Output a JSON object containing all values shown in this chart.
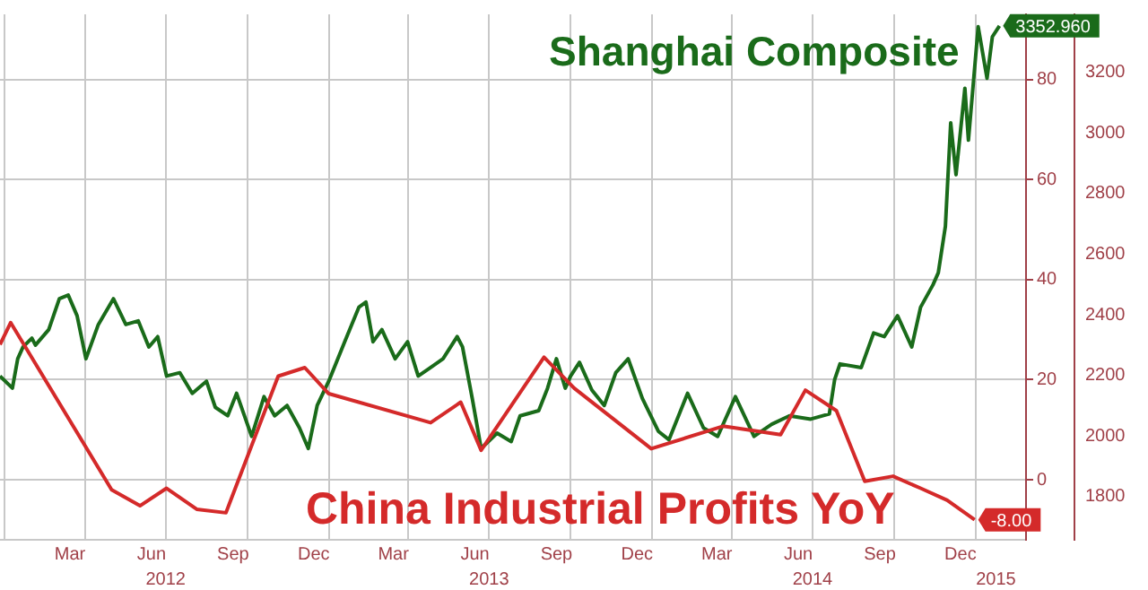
{
  "chart_data": {
    "type": "line",
    "xlim": [
      "2011-12-27",
      "2015-02-27"
    ],
    "xticks": [
      {
        "value": "2012-01-01",
        "label": null
      },
      {
        "value": "2012-03-15",
        "label": "Mar"
      },
      {
        "value": "2012-04-01",
        "label": null
      },
      {
        "value": "2012-06-15",
        "label": "Jun"
      },
      {
        "value": "2012-07-01",
        "label": null
      },
      {
        "value": "2012-09-15",
        "label": "Sep"
      },
      {
        "value": "2012-10-01",
        "label": null
      },
      {
        "value": "2012-12-15",
        "label": "Dec"
      },
      {
        "value": "2013-01-01",
        "label": null
      },
      {
        "value": "2013-03-15",
        "label": "Mar"
      },
      {
        "value": "2013-04-01",
        "label": null
      },
      {
        "value": "2013-06-15",
        "label": "Jun"
      },
      {
        "value": "2013-07-01",
        "label": null
      },
      {
        "value": "2013-09-15",
        "label": "Sep"
      },
      {
        "value": "2013-10-01",
        "label": null
      },
      {
        "value": "2013-12-15",
        "label": "Dec"
      },
      {
        "value": "2014-01-01",
        "label": null
      },
      {
        "value": "2014-03-15",
        "label": "Mar"
      },
      {
        "value": "2014-04-01",
        "label": null
      },
      {
        "value": "2014-06-15",
        "label": "Jun"
      },
      {
        "value": "2014-07-01",
        "label": null
      },
      {
        "value": "2014-09-15",
        "label": "Sep"
      },
      {
        "value": "2014-10-01",
        "label": null
      },
      {
        "value": "2014-12-15",
        "label": "Dec"
      },
      {
        "value": "2015-01-01",
        "label": null
      }
    ],
    "x2lim": [
      "2011-12-27",
      "2015-02-27"
    ],
    "x2ticks": [
      {
        "value": "2012-07-01",
        "label": "2012"
      },
      {
        "value": "2013-07-01",
        "label": "2013"
      },
      {
        "value": "2014-07-01",
        "label": "2014"
      },
      {
        "value": "2015-01-24",
        "label": "2015"
      }
    ],
    "ylim": [
      -12,
      93
    ],
    "yticks": [
      0,
      20,
      40,
      60,
      80
    ],
    "y2lim": [
      1658,
      3391
    ],
    "y2ticks": [
      1800,
      2000,
      2200,
      2400,
      2600,
      2800,
      3000,
      3200
    ],
    "grid": true,
    "legend": "right",
    "marker": "none",
    "line_style": "solid",
    "series": [
      {
        "name": "China Industrial Profits YoY",
        "color": "#d42a2a",
        "axis": "y",
        "x": [
          "2011-12-27",
          "2012-01-08",
          "2012-05-01",
          "2012-06-02",
          "2012-07-02",
          "2012-08-05",
          "2012-09-07",
          "2012-11-05",
          "2012-12-05",
          "2013-01-01",
          "2013-04-26",
          "2013-05-30",
          "2013-06-22",
          "2013-09-01",
          "2013-10-05",
          "2013-12-31",
          "2014-03-22",
          "2014-05-26",
          "2014-06-23",
          "2014-07-28",
          "2014-08-29",
          "2014-09-30",
          "2014-10-31",
          "2014-11-30",
          "2014-12-31"
        ],
        "values": [
          27,
          31.4,
          -2,
          -5.2,
          -1.7,
          -5.9,
          -6.6,
          20.7,
          22.4,
          17.2,
          11.4,
          15.5,
          5.9,
          24.5,
          18.3,
          6.2,
          10.7,
          9,
          17.9,
          13.8,
          -0.3,
          0.7,
          -1.7,
          -4.1,
          -8
        ],
        "value_labels": [
          null,
          null,
          null,
          null,
          null,
          null,
          null,
          null,
          null,
          null,
          null,
          null,
          null,
          null,
          null,
          null,
          null,
          null,
          null,
          null,
          null,
          null,
          null,
          null,
          "-8.00"
        ]
      },
      {
        "name": "Shanghai Composite",
        "color": "#1a6b1a",
        "axis": "y2",
        "x": [
          "2011-12-27",
          "2012-01-10",
          "2012-01-16",
          "2012-01-22",
          "2012-02-01",
          "2012-02-05",
          "2012-02-20",
          "2012-03-03",
          "2012-03-13",
          "2012-03-23",
          "2012-04-02",
          "2012-04-16",
          "2012-05-03",
          "2012-05-17",
          "2012-05-31",
          "2012-06-12",
          "2012-06-22",
          "2012-07-02",
          "2012-07-17",
          "2012-07-31",
          "2012-08-16",
          "2012-08-26",
          "2012-09-09",
          "2012-09-19",
          "2012-10-06",
          "2012-10-20",
          "2012-11-01",
          "2012-11-15",
          "2012-11-29",
          "2012-12-09",
          "2012-12-19",
          "2013-01-01",
          "2013-01-19",
          "2013-02-04",
          "2013-02-12",
          "2013-02-20",
          "2013-03-02",
          "2013-03-17",
          "2013-03-31",
          "2013-04-12",
          "2013-04-26",
          "2013-05-10",
          "2013-05-26",
          "2013-06-01",
          "2013-06-12",
          "2013-06-22",
          "2013-07-10",
          "2013-07-26",
          "2013-08-05",
          "2013-08-26",
          "2013-09-05",
          "2013-09-15",
          "2013-09-25",
          "2013-10-01",
          "2013-10-11",
          "2013-10-25",
          "2013-11-08",
          "2013-11-21",
          "2013-12-05",
          "2013-12-21",
          "2014-01-08",
          "2014-01-20",
          "2014-02-10",
          "2014-02-28",
          "2014-03-16",
          "2014-04-05",
          "2014-04-26",
          "2014-05-16",
          "2014-06-05",
          "2014-06-29",
          "2014-07-20",
          "2014-07-26",
          "2014-08-01",
          "2014-08-25",
          "2014-09-08",
          "2014-09-20",
          "2014-10-05",
          "2014-10-21",
          "2014-10-31",
          "2014-11-14",
          "2014-11-20",
          "2014-11-28",
          "2014-12-04",
          "2014-12-10",
          "2014-12-20",
          "2014-12-24",
          "2015-01-04",
          "2015-01-14",
          "2015-01-20",
          "2015-01-28"
        ],
        "values": [
          2198,
          2158,
          2255,
          2294,
          2323,
          2300,
          2351,
          2453,
          2465,
          2397,
          2255,
          2368,
          2453,
          2368,
          2380,
          2294,
          2328,
          2198,
          2209,
          2141,
          2181,
          2095,
          2067,
          2141,
          1999,
          2130,
          2067,
          2101,
          2027,
          1959,
          2101,
          2181,
          2311,
          2425,
          2442,
          2311,
          2351,
          2255,
          2311,
          2198,
          2226,
          2255,
          2328,
          2294,
          2124,
          1959,
          2010,
          1982,
          2067,
          2084,
          2158,
          2255,
          2158,
          2198,
          2243,
          2152,
          2101,
          2209,
          2255,
          2124,
          2016,
          1988,
          2141,
          2027,
          1999,
          2130,
          1999,
          2039,
          2067,
          2056,
          2073,
          2186,
          2238,
          2226,
          2340,
          2328,
          2397,
          2294,
          2425,
          2499,
          2539,
          2692,
          3033,
          2862,
          3147,
          2976,
          3350,
          3180,
          3317,
          3352.96
        ],
        "value_labels": [
          null,
          null,
          null,
          null,
          null,
          null,
          null,
          null,
          null,
          null,
          null,
          null,
          null,
          null,
          null,
          null,
          null,
          null,
          null,
          null,
          null,
          null,
          null,
          null,
          null,
          null,
          null,
          null,
          null,
          null,
          null,
          null,
          null,
          null,
          null,
          null,
          null,
          null,
          null,
          null,
          null,
          null,
          null,
          null,
          null,
          null,
          null,
          null,
          null,
          null,
          null,
          null,
          null,
          null,
          null,
          null,
          null,
          null,
          null,
          null,
          null,
          null,
          null,
          null,
          null,
          null,
          null,
          null,
          null,
          null,
          null,
          null,
          null,
          null,
          null,
          null,
          null,
          null,
          null,
          null,
          null,
          null,
          null,
          null,
          null,
          null,
          null,
          null,
          null,
          "3352.960"
        ]
      }
    ]
  }
}
